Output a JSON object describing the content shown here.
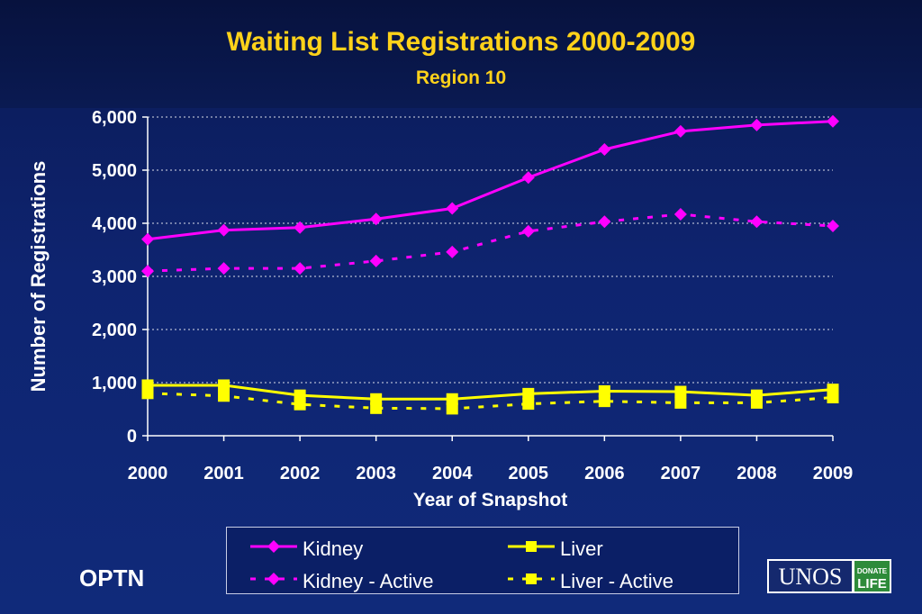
{
  "header": {
    "title": "Waiting List Registrations 2000-2009",
    "subtitle": "Region 10"
  },
  "footer": {
    "optn_label": "OPTN",
    "logo_text": "UNOS",
    "logo_badge_top": "DONATE",
    "logo_badge_bottom": "LIFE"
  },
  "colors": {
    "kidney": "#ff00ff",
    "liver": "#ffff00",
    "axis_text": "#ffffff",
    "title": "#ffd21a"
  },
  "chart_data": {
    "type": "line",
    "title": "Waiting List Registrations 2000-2009",
    "subtitle": "Region 10",
    "xlabel": "Year of Snapshot",
    "ylabel": "Number of Registrations",
    "x": [
      "2000",
      "2001",
      "2002",
      "2003",
      "2004",
      "2005",
      "2006",
      "2007",
      "2008",
      "2009"
    ],
    "ylim": [
      0,
      6000
    ],
    "yticks": [
      0,
      1000,
      2000,
      3000,
      4000,
      5000,
      6000
    ],
    "ytick_labels": [
      "0",
      "1,000",
      "2,000",
      "3,000",
      "4,000",
      "5,000",
      "6,000"
    ],
    "grid": true,
    "legend_position": "bottom",
    "series": [
      {
        "name": "Kidney",
        "color": "#ff00ff",
        "marker": "diamond",
        "dashed": false,
        "values": [
          3700,
          3870,
          3920,
          4080,
          4280,
          4860,
          5390,
          5730,
          5850,
          5920
        ]
      },
      {
        "name": "Kidney - Active",
        "color": "#ff00ff",
        "marker": "diamond",
        "dashed": true,
        "values": [
          3100,
          3150,
          3150,
          3290,
          3460,
          3850,
          4030,
          4170,
          4030,
          3950
        ]
      },
      {
        "name": "Liver",
        "color": "#ffff00",
        "marker": "square",
        "dashed": false,
        "values": [
          950,
          950,
          760,
          690,
          690,
          790,
          840,
          830,
          760,
          870
        ]
      },
      {
        "name": "Liver - Active",
        "color": "#ffff00",
        "marker": "square",
        "dashed": true,
        "values": [
          800,
          750,
          590,
          520,
          510,
          600,
          650,
          620,
          620,
          720
        ]
      }
    ]
  }
}
